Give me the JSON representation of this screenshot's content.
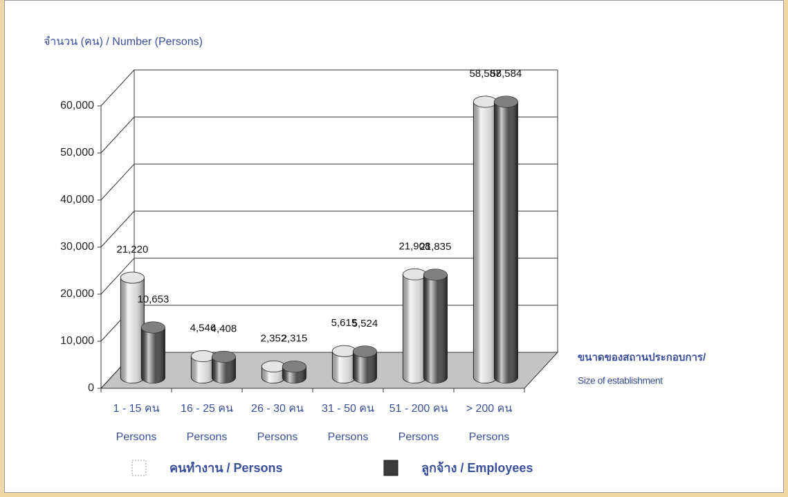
{
  "chart_data": {
    "type": "bar3d",
    "ylabel": "จำนวน (คน) / Number (Persons)",
    "xlabel": [
      "ขนาดของสถานประกอบการ/",
      "Size of establishment"
    ],
    "categories": [
      [
        "1 - 15 คน",
        "Persons"
      ],
      [
        "16 - 25 คน",
        "Persons"
      ],
      [
        "26 - 30 คน",
        "Persons"
      ],
      [
        "31 - 50 คน",
        "Persons"
      ],
      [
        "51 - 200 คน",
        "Persons"
      ],
      [
        "> 200 คน",
        "Persons"
      ]
    ],
    "series": [
      {
        "name": "คนทำงาน / Persons",
        "color": "#d8d8d8",
        "values": [
          21220,
          4546,
          2352,
          5615,
          21908,
          58587
        ],
        "value_labels": [
          "21,220",
          "4,546",
          "2,352",
          "5,615",
          "21,908",
          "58,587"
        ]
      },
      {
        "name": "ลูกจ้าง /  Employees",
        "color": "#3c3c3c",
        "values": [
          10653,
          4408,
          2315,
          5524,
          21835,
          58584
        ],
        "value_labels": [
          "10,653",
          "4,408",
          "2,315",
          "5,524",
          "21,835",
          "58,584"
        ]
      }
    ],
    "ylim": [
      0,
      60000
    ],
    "yticks": [
      0,
      {
        "value": 10000,
        "label": "10,000"
      },
      {
        "value": 20000,
        "label": "20,000"
      },
      {
        "value": 30000,
        "label": "30,000"
      },
      {
        "value": 40000,
        "label": "40,000"
      },
      {
        "value": 50000,
        "label": "50,000"
      },
      {
        "value": 60000,
        "label": "60,000"
      }
    ],
    "grid": true
  }
}
